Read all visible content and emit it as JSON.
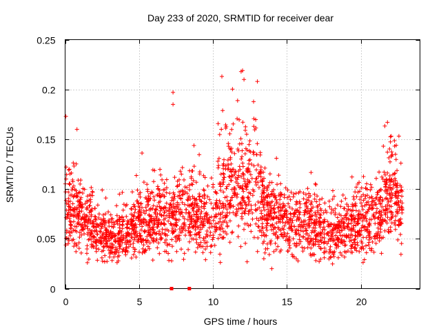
{
  "chart_data": {
    "type": "scatter",
    "title": "Day 233 of 2020, SRMTID for receiver dear",
    "xlabel": "GPS time / hours",
    "ylabel": "SRMTID / TECUs",
    "xlim": [
      0,
      24
    ],
    "ylim": [
      0,
      0.25
    ],
    "x_ticks": [
      0,
      5,
      10,
      15,
      20
    ],
    "x_tick_labels": [
      "0",
      "5",
      "10",
      "15",
      "20"
    ],
    "y_ticks": [
      0,
      0.05,
      0.1,
      0.15,
      0.2,
      0.25
    ],
    "y_tick_labels": [
      "0",
      "0.05",
      "0.1",
      "0.15",
      "0.2",
      "0.25"
    ],
    "grid": true,
    "marker": "+",
    "color": "#ff0000",
    "x_range_of_points": [
      0,
      22.8
    ],
    "typical_value_range": [
      0.025,
      0.14
    ],
    "baseline_markers_x": [
      7.2,
      8.4
    ],
    "profile": {
      "x": [
        0,
        0.5,
        1,
        1.5,
        2,
        2.5,
        3,
        3.5,
        4,
        4.5,
        5,
        5.5,
        6,
        6.5,
        7,
        7.5,
        8,
        8.5,
        9,
        9.5,
        10,
        10.5,
        11,
        11.5,
        12,
        12.5,
        13,
        13.5,
        14,
        14.5,
        15,
        15.5,
        16,
        16.5,
        17,
        17.5,
        18,
        18.5,
        19,
        19.5,
        20,
        20.5,
        21,
        21.5,
        22,
        22.5,
        22.8
      ],
      "y": [
        0.085,
        0.08,
        0.072,
        0.065,
        0.058,
        0.052,
        0.05,
        0.052,
        0.055,
        0.06,
        0.065,
        0.068,
        0.07,
        0.072,
        0.07,
        0.072,
        0.075,
        0.075,
        0.072,
        0.07,
        0.07,
        0.075,
        0.08,
        0.09,
        0.095,
        0.095,
        0.09,
        0.08,
        0.072,
        0.07,
        0.068,
        0.066,
        0.065,
        0.063,
        0.06,
        0.06,
        0.058,
        0.058,
        0.06,
        0.062,
        0.065,
        0.068,
        0.072,
        0.08,
        0.09,
        0.085,
        0.08
      ]
    },
    "notable_points": [
      {
        "x": 0.05,
        "y": 0.173
      },
      {
        "x": 0.8,
        "y": 0.16
      },
      {
        "x": 7.3,
        "y": 0.197
      },
      {
        "x": 7.3,
        "y": 0.185
      },
      {
        "x": 10.6,
        "y": 0.213
      },
      {
        "x": 11.9,
        "y": 0.218
      },
      {
        "x": 12.0,
        "y": 0.219
      },
      {
        "x": 12.1,
        "y": 0.21
      },
      {
        "x": 13.0,
        "y": 0.208
      },
      {
        "x": 21.8,
        "y": 0.167
      }
    ]
  }
}
